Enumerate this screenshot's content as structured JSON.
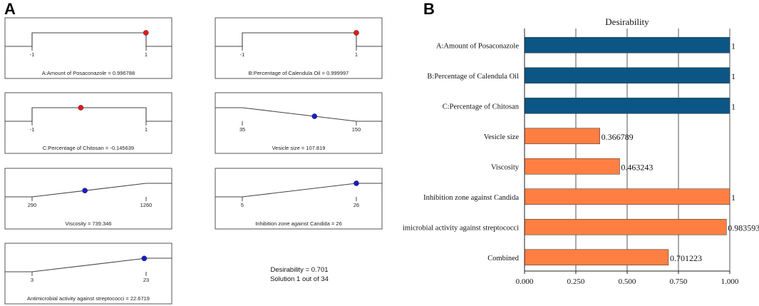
{
  "panel_a": {
    "letter": "A",
    "ramps": [
      {
        "type": "flat",
        "from": "-1",
        "to": "1",
        "point": 0.996788,
        "marker": "red",
        "caption": "A:Amount of Posaconazole = 0.996788"
      },
      {
        "type": "flat",
        "from": "-1",
        "to": "1",
        "point": 0.999997,
        "marker": "red",
        "caption": "B:Percentage of Calendula Oil = 0.999997"
      },
      {
        "type": "flat",
        "from": "-1",
        "to": "1",
        "point": -0.145639,
        "marker": "red",
        "caption": "C:Percentage of Chitosan = -0.145639"
      },
      {
        "type": "min",
        "from": "35",
        "to": "150",
        "point": 107.819,
        "marker": "blue",
        "caption": "Vesicle size = 107.819"
      },
      {
        "type": "max",
        "from": "290",
        "to": "1260",
        "point": 739.346,
        "marker": "blue",
        "caption": "Viscosity = 739.346"
      },
      {
        "type": "max",
        "from": "5",
        "to": "26",
        "point": 26,
        "marker": "blue",
        "caption": "Inhibition zone against Candida = 26"
      },
      {
        "type": "max",
        "from": "3",
        "to": "23",
        "point": 22.6719,
        "marker": "blue",
        "caption": "Antimicrobial activity against streptococci = 22.6719"
      }
    ],
    "summary": {
      "desirability": "Desirability = 0.701",
      "solution": "Solution 1 out of 34"
    }
  },
  "panel_b": {
    "letter": "B"
  },
  "colors": {
    "factor_bar": "#0b5685",
    "response_bar": "#ff7f43",
    "marker_red": "#e8161a",
    "marker_blue": "#1a1acc"
  },
  "chart_data": {
    "type": "bar",
    "orientation": "horizontal",
    "title": "Desirability",
    "categories": [
      "A:Amount of Posaconazole",
      "B:Percentage of Calendula Oil",
      "C:Percentage of Chitosan",
      "Vesicle size",
      "Viscosity",
      "Inhibition zone against Candida",
      "imicrobial activity against streptococci",
      "Combined"
    ],
    "values": [
      1,
      1,
      1,
      0.366789,
      0.463243,
      1,
      0.983593,
      0.701223
    ],
    "value_labels": [
      "1",
      "1",
      "1",
      "0.366789",
      "0.463243",
      "1",
      "0.983593",
      "0.701223"
    ],
    "groups": [
      "factor",
      "factor",
      "factor",
      "response",
      "response",
      "response",
      "response",
      "response"
    ],
    "xlim": [
      0,
      1
    ],
    "xticks": [
      "0.000",
      "0.250",
      "0.500",
      "0.750",
      "1.000"
    ],
    "grid": true
  }
}
